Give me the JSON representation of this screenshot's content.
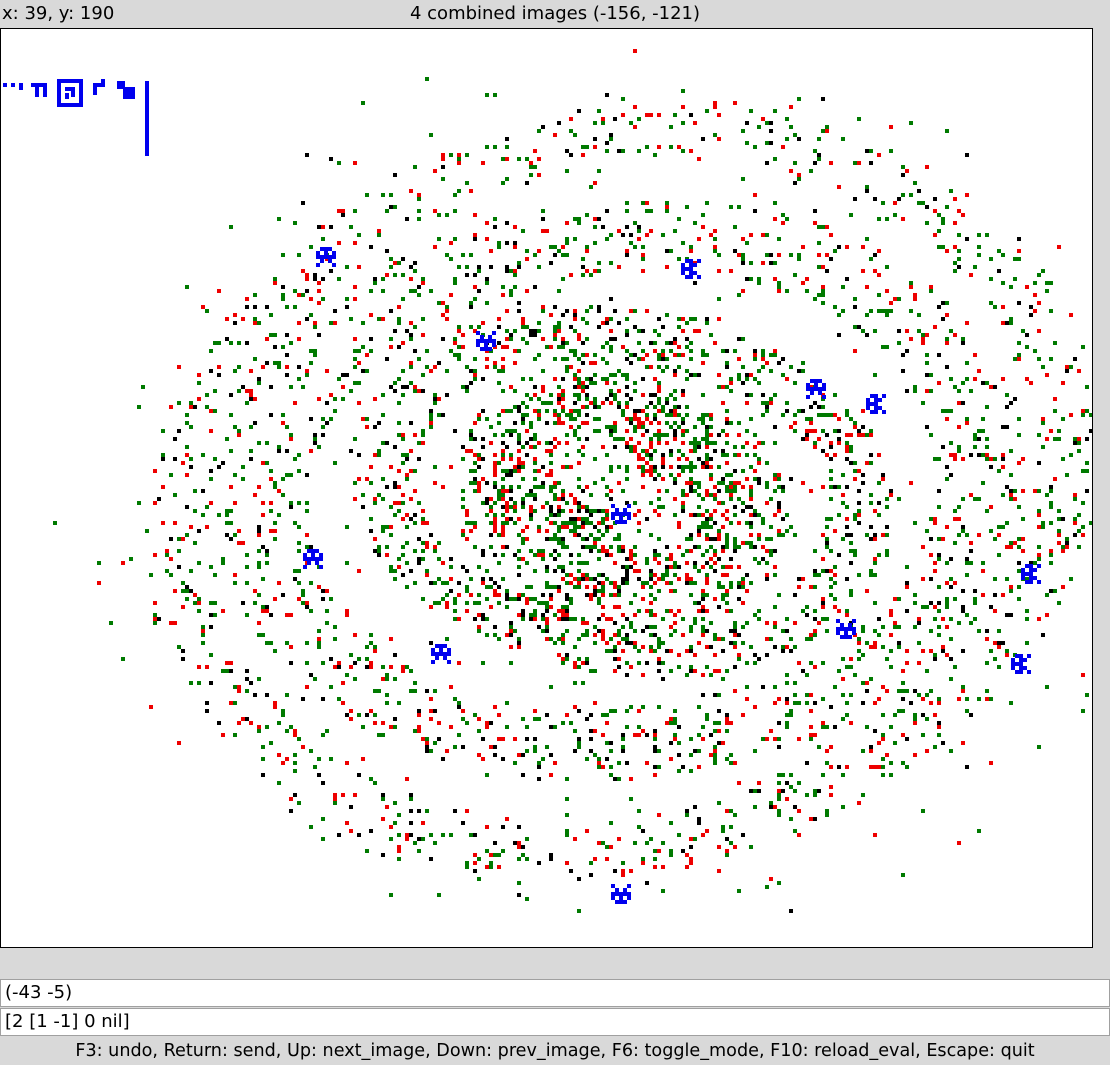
{
  "status": {
    "coords": "x: 39, y: 190",
    "title": "4 combined images (-156, -121)"
  },
  "canvas": {
    "background": "#ffffff",
    "colors": {
      "green": "#007a00",
      "red": "#ee0000",
      "black": "#000000",
      "blue": "#0000ee"
    },
    "description_icons": [
      "galaxy-pixel-field",
      "glyph-sprite"
    ]
  },
  "input": {
    "line1": "(-43 -5)",
    "line2": "[2 [1 -1] 0 nil]"
  },
  "help": {
    "text": "F3: undo, Return: send, Up: next_image, Down: prev_image, F6: toggle_mode, F10: reload_eval, Escape: quit"
  }
}
